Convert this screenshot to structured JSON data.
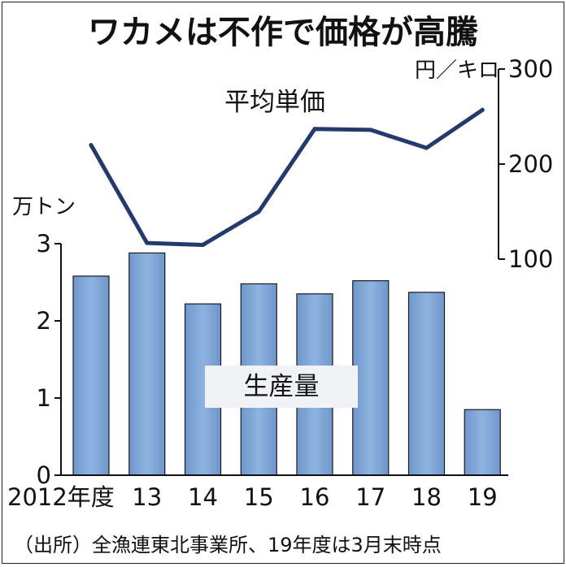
{
  "chart_data": {
    "type": "bar+line",
    "title": "ワカメは不作で価格が高騰",
    "categories": [
      "2012年度",
      "13",
      "14",
      "15",
      "16",
      "17",
      "18",
      "19"
    ],
    "bars": {
      "name": "生産量",
      "unit": "万トン",
      "values": [
        2.58,
        2.88,
        2.22,
        2.48,
        2.35,
        2.52,
        2.37,
        0.85
      ],
      "ylim": [
        0,
        3
      ],
      "ticks": [
        0,
        1,
        2,
        3
      ],
      "color": "#7fa6d6"
    },
    "line": {
      "name": "平均単価",
      "unit": "円／キロ",
      "values": [
        220,
        117,
        115,
        150,
        237,
        236,
        217,
        257
      ],
      "ylim": [
        100,
        300
      ],
      "ticks": [
        100,
        200,
        300
      ],
      "color": "#233a6a"
    },
    "source": "（出所）全漁連東北事業所、19年度は3月末時点"
  }
}
